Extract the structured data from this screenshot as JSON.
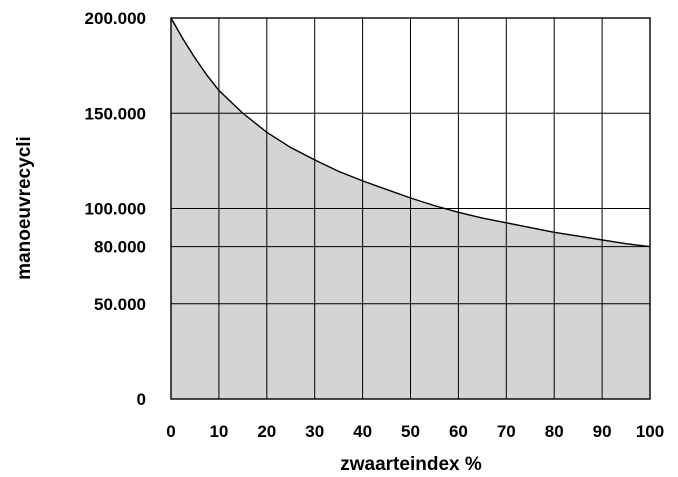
{
  "chart_data": {
    "type": "area",
    "xlabel": "zwaarteindex %",
    "ylabel": "manoeuvrecycli",
    "xlim": [
      0,
      100
    ],
    "ylim": [
      0,
      200000
    ],
    "grid": true,
    "fill_color": "#d4d4d6",
    "line_color": "#000000",
    "x_ticks": [
      {
        "value": 0,
        "label": "0"
      },
      {
        "value": 10,
        "label": "10"
      },
      {
        "value": 20,
        "label": "20"
      },
      {
        "value": 30,
        "label": "30"
      },
      {
        "value": 40,
        "label": "40"
      },
      {
        "value": 50,
        "label": "50"
      },
      {
        "value": 60,
        "label": "60"
      },
      {
        "value": 70,
        "label": "70"
      },
      {
        "value": 80,
        "label": "80"
      },
      {
        "value": 90,
        "label": "90"
      },
      {
        "value": 100,
        "label": "100"
      }
    ],
    "y_ticks": [
      {
        "value": 0,
        "label": "0"
      },
      {
        "value": 50000,
        "label": "50.000"
      },
      {
        "value": 80000,
        "label": "80.000"
      },
      {
        "value": 100000,
        "label": "100.000"
      },
      {
        "value": 150000,
        "label": "150.000"
      },
      {
        "value": 200000,
        "label": "200.000"
      }
    ],
    "series": [
      {
        "x": [
          0,
          2.5,
          5,
          7.5,
          10,
          15,
          20,
          25,
          30,
          35,
          40,
          45,
          50,
          55,
          60,
          65,
          70,
          75,
          80,
          85,
          90,
          95,
          100
        ],
        "y": [
          200000,
          189000,
          179000,
          170000,
          162000,
          150000,
          140000,
          132000,
          125500,
          119500,
          114500,
          110000,
          105500,
          101500,
          98000,
          95000,
          92500,
          90000,
          87500,
          85500,
          83500,
          81500,
          80000
        ]
      }
    ]
  }
}
